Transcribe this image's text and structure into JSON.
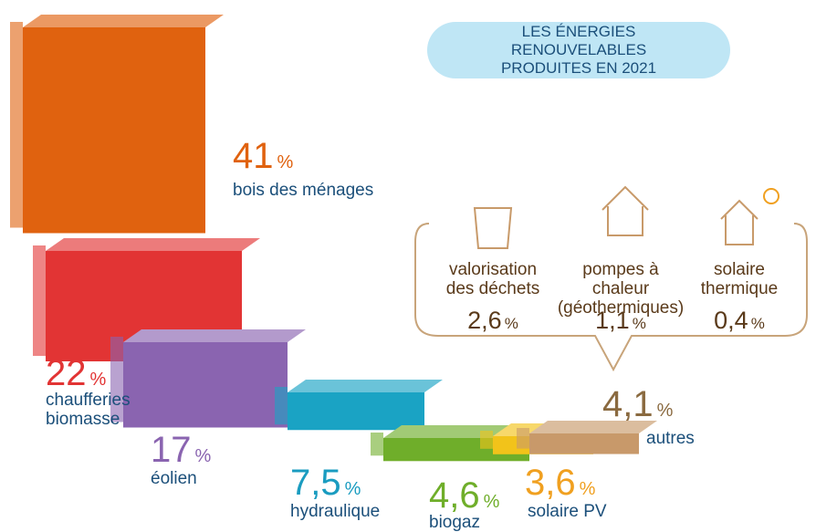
{
  "chart_data": {
    "type": "steps",
    "title": "LES ÉNERGIES RENOUVELABLES PRODUITES EN 2021",
    "unit": "%",
    "categories": [
      "bois des ménages",
      "chaufferies biomasse",
      "éolien",
      "hydraulique",
      "biogaz",
      "solaire PV",
      "autres"
    ],
    "values": [
      41,
      22,
      17,
      7.5,
      4.6,
      3.6,
      4.1
    ],
    "value_labels": [
      "41",
      "22",
      "17",
      "7,5",
      "4,6",
      "3,6",
      "4,1"
    ],
    "colors": [
      "#e0620f",
      "#e23434",
      "#8a64b0",
      "#1aa3c4",
      "#6fae2a",
      "#f2c31a",
      "#c8996a"
    ],
    "label_colors": [
      "#e0620f",
      "#e23434",
      "#8a64b0",
      "#1a9cc0",
      "#6fae2a",
      "#f0a020",
      "#8a6a40"
    ],
    "breakdown": {
      "categories": [
        "valorisation des déchets",
        "pompes à chaleur (géothermiques)",
        "solaire thermique"
      ],
      "values": [
        2.6,
        1.1,
        0.4
      ],
      "value_labels": [
        "2,6",
        "1,1",
        "0,4"
      ]
    }
  }
}
